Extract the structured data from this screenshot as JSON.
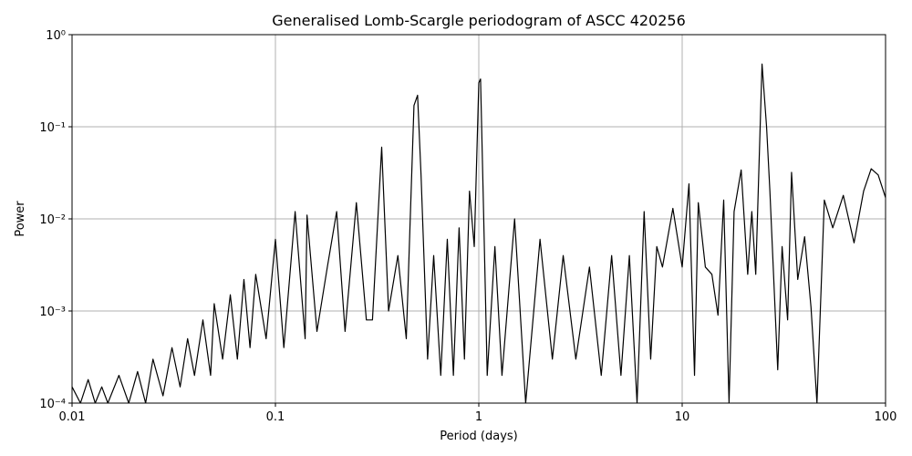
{
  "chart_data": {
    "type": "line",
    "title": "Generalised Lomb-Scargle periodogram of ASCC 420256",
    "x_label": "Period (days)",
    "y_label": "Power",
    "xscale": "log",
    "yscale": "log",
    "grid": true,
    "xlim": [
      0.01,
      100
    ],
    "ylim": [
      0.0001,
      1
    ],
    "xticks": [
      0.01,
      0.1,
      1,
      10,
      100
    ],
    "yticks": [
      {
        "value": 0.0001,
        "label": "10⁻⁴"
      },
      {
        "value": 0.001,
        "label": "10⁻³"
      },
      {
        "value": 0.01,
        "label": "10⁻²"
      },
      {
        "value": 0.1,
        "label": "10⁻¹"
      },
      {
        "value": 1,
        "label": "10⁰"
      }
    ],
    "x": [
      0.01,
      0.011,
      0.012,
      0.013,
      0.014,
      0.015,
      0.017,
      0.019,
      0.021,
      0.023,
      0.025,
      0.028,
      0.031,
      0.034,
      0.037,
      0.04,
      0.044,
      0.048,
      0.05,
      0.055,
      0.06,
      0.065,
      0.07,
      0.075,
      0.08,
      0.09,
      0.1,
      0.11,
      0.125,
      0.14,
      0.143,
      0.16,
      0.18,
      0.2,
      0.22,
      0.25,
      0.28,
      0.3,
      0.333,
      0.36,
      0.4,
      0.44,
      0.48,
      0.5,
      0.52,
      0.56,
      0.6,
      0.65,
      0.7,
      0.75,
      0.8,
      0.85,
      0.9,
      0.95,
      1.0,
      1.02,
      1.05,
      1.1,
      1.2,
      1.3,
      1.5,
      1.7,
      2.0,
      2.3,
      2.6,
      3.0,
      3.5,
      4,
      4.5,
      5,
      5.5,
      6,
      6.5,
      7,
      7.5,
      8,
      9,
      10,
      10.8,
      11.5,
      12,
      13,
      14,
      15,
      16,
      17,
      18,
      19.5,
      21,
      22,
      23,
      24.7,
      26,
      27,
      29.5,
      31,
      33,
      34.5,
      37,
      40,
      43,
      46,
      50,
      55,
      62,
      70,
      78,
      85,
      92,
      100
    ],
    "series": [
      {
        "color": "#000000",
        "values": [
          0.00015,
          0.0001,
          0.00018,
          0.0001,
          0.00015,
          0.0001,
          0.0002,
          0.0001,
          0.00022,
          0.0001,
          0.0003,
          0.00012,
          0.0004,
          0.00015,
          0.0005,
          0.0002,
          0.0008,
          0.0002,
          0.0012,
          0.0003,
          0.0015,
          0.0003,
          0.0022,
          0.0004,
          0.0025,
          0.0005,
          0.006,
          0.0004,
          0.012,
          0.0005,
          0.011,
          0.0006,
          0.003,
          0.012,
          0.0006,
          0.015,
          0.0008,
          0.0008,
          0.06,
          0.001,
          0.004,
          0.0005,
          0.17,
          0.22,
          0.03,
          0.0003,
          0.004,
          0.0002,
          0.006,
          0.0002,
          0.008,
          0.0003,
          0.02,
          0.005,
          0.3,
          0.33,
          0.02,
          0.0002,
          0.005,
          0.0002,
          0.01,
          0.0001,
          0.006,
          0.0003,
          0.004,
          0.0003,
          0.003,
          0.0002,
          0.004,
          0.0002,
          0.004,
          0.0001,
          0.012,
          0.0003,
          0.005,
          0.003,
          0.013,
          0.003,
          0.024,
          0.0002,
          0.015,
          0.003,
          0.0025,
          0.0009,
          0.016,
          0.0001,
          0.012,
          0.034,
          0.0025,
          0.012,
          0.0025,
          0.48,
          0.1,
          0.02,
          0.00023,
          0.005,
          0.0008,
          0.032,
          0.0022,
          0.0064,
          0.0011,
          0.0001,
          0.016,
          0.008,
          0.018,
          0.0055,
          0.02,
          0.035,
          0.03,
          0.017
        ]
      }
    ]
  }
}
